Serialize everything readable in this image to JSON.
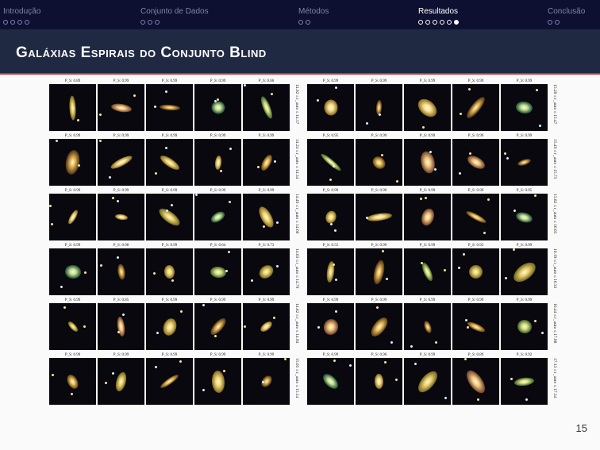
{
  "nav": {
    "sections": [
      {
        "label": "Introdução",
        "dots": 4,
        "filled": -1,
        "active": false
      },
      {
        "label": "Conjunto de Dados",
        "dots": 3,
        "filled": -1,
        "active": false
      },
      {
        "label": "Métodos",
        "dots": 2,
        "filled": -1,
        "active": false
      },
      {
        "label": "Resultados",
        "dots": 6,
        "filled": 5,
        "active": true
      },
      {
        "label": "Conclusão",
        "dots": 2,
        "filled": -1,
        "active": false
      }
    ]
  },
  "slide": {
    "title": "Galáxias Espirais do Conjunto Blind",
    "page_number": "15"
  },
  "colors": {
    "nav_bg": "#0d1030",
    "title_bg": "#1f2942",
    "accent": "#c0392b"
  },
  "figure": {
    "left_panel": {
      "rows": [
        {
          "label": "14.02 ≤ r_auto ≤ 14.17",
          "probs": [
            "P_S: 0.89",
            "P_S: 0.99",
            "P_S: 0.99",
            "P_S: 0.99",
            "P_S: 0.66"
          ]
        },
        {
          "label": "14.24 ≤ r_auto ≤ 14.34",
          "probs": [
            "P_S: 0.99",
            "P_S: 0.99",
            "P_S: 0.99",
            "P_S: 0.99",
            "P_S: 0.99"
          ]
        },
        {
          "label": "14.46 ≤ r_auto ≤ 14.60",
          "probs": [
            "P_S: 0.99",
            "P_S: 0.99",
            "P_S: 0.99",
            "P_S: 0.99",
            "P_S: 0.99"
          ]
        },
        {
          "label": "14.63 ≤ r_auto ≤ 14.79",
          "probs": [
            "P_S: 0.99",
            "P_S: 0.98",
            "P_S: 0.99",
            "P_S: 0.64",
            "P_S: 0.73"
          ]
        },
        {
          "label": "14.82 ≤ r_auto ≤ 14.94",
          "probs": [
            "P_S: 0.99",
            "P_S: 0.85",
            "P_S: 0.99",
            "P_S: 0.99",
            "P_S: 0.99"
          ]
        },
        {
          "label": "15.05 ≤ r_auto ≤ 15.14",
          "probs": [
            "P_S: 0.99",
            "P_S: 0.99",
            "P_S: 0.99",
            "P_S: 0.99",
            "P_S: 0.99"
          ]
        }
      ]
    },
    "right_panel": {
      "rows": [
        {
          "label": "15.20 ≤ r_auto ≤ 15.47",
          "probs": [
            "P_S: 0.99",
            "P_S: 0.99",
            "P_S: 0.99",
            "P_S: 0.99",
            "P_S: 0.99"
          ]
        },
        {
          "label": "15.49 ≤ r_auto ≤ 15.73",
          "probs": [
            "P_S: 0.95",
            "P_S: 0.99",
            "P_S: 0.99",
            "P_S: 0.99",
            "P_S: 0.99"
          ]
        },
        {
          "label": "15.82 ≤ r_auto ≤ 16.03",
          "probs": [
            "P_S: 0.99",
            "P_S: 0.99",
            "P_S: 0.99",
            "P_S: 0.99",
            "P_S: 0.95"
          ]
        },
        {
          "label": "16.19 ≤ r_auto ≤ 16.33",
          "probs": [
            "P_S: 0.55",
            "P_S: 0.99",
            "P_S: 0.99",
            "P_S: 0.93",
            "P_S: 0.99"
          ]
        },
        {
          "label": "16.44 ≤ r_auto ≤ 17.08",
          "probs": [
            "P_S: 0.99",
            "P_S: 0.99",
            "P_S: 0.99",
            "P_S: 0.99",
            "P_S: 0.99"
          ]
        },
        {
          "label": "17.13 ≤ r_auto ≤ 17.34",
          "probs": [
            "P_S: 0.99",
            "P_S: 0.96",
            "P_S: 0.99",
            "P_S: 0.89",
            "P_S: 0.92"
          ]
        }
      ]
    }
  }
}
